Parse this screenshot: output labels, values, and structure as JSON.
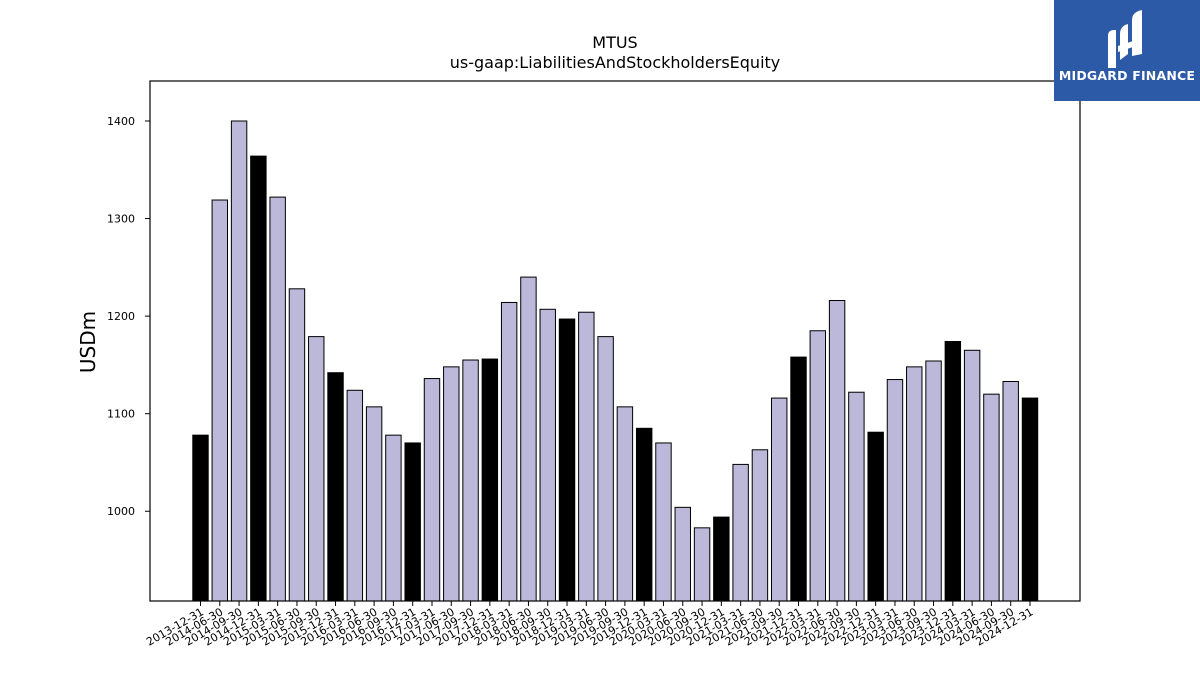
{
  "chart_data": {
    "type": "bar",
    "title": "MTUS",
    "subtitle": "us-gaap:LiabilitiesAndStockholdersEquity",
    "xlabel": "",
    "ylabel": "USDm",
    "ylim": [
      908,
      1441
    ],
    "yticks": [
      1000,
      1100,
      1200,
      1300,
      1400
    ],
    "grid": false,
    "colors": {
      "quarter": "#bcb8da",
      "year_end": "#000000",
      "edge": "#000000"
    },
    "categories": [
      "2013-12-31",
      "2014-06-30",
      "2014-09-30",
      "2014-12-31",
      "2015-03-31",
      "2015-06-30",
      "2015-09-30",
      "2015-12-31",
      "2016-03-31",
      "2016-06-30",
      "2016-09-30",
      "2016-12-31",
      "2017-03-31",
      "2017-06-30",
      "2017-09-30",
      "2017-12-31",
      "2018-03-31",
      "2018-06-30",
      "2018-09-30",
      "2018-12-31",
      "2019-03-31",
      "2019-06-30",
      "2019-09-30",
      "2019-12-31",
      "2020-03-31",
      "2020-06-30",
      "2020-09-30",
      "2020-12-31",
      "2021-03-31",
      "2021-06-30",
      "2021-09-30",
      "2021-12-31",
      "2022-03-31",
      "2022-06-30",
      "2022-09-30",
      "2022-12-31",
      "2023-03-31",
      "2023-06-30",
      "2023-09-30",
      "2023-12-31",
      "2024-03-31",
      "2024-06-30",
      "2024-09-30",
      "2024-12-31"
    ],
    "values": [
      1078,
      1319,
      1400,
      1364,
      1322,
      1228,
      1179,
      1142,
      1124,
      1107,
      1078,
      1070,
      1136,
      1148,
      1155,
      1156,
      1214,
      1240,
      1207,
      1197,
      1204,
      1179,
      1107,
      1085,
      1070,
      1004,
      983,
      994,
      1048,
      1063,
      1116,
      1158,
      1185,
      1216,
      1122,
      1081,
      1135,
      1148,
      1154,
      1174,
      1165,
      1120,
      1133,
      1116
    ]
  },
  "logo": {
    "text": "MIDGARD FINANCE",
    "icon": "midgard-logo-icon",
    "background": "#2c5aa6"
  }
}
